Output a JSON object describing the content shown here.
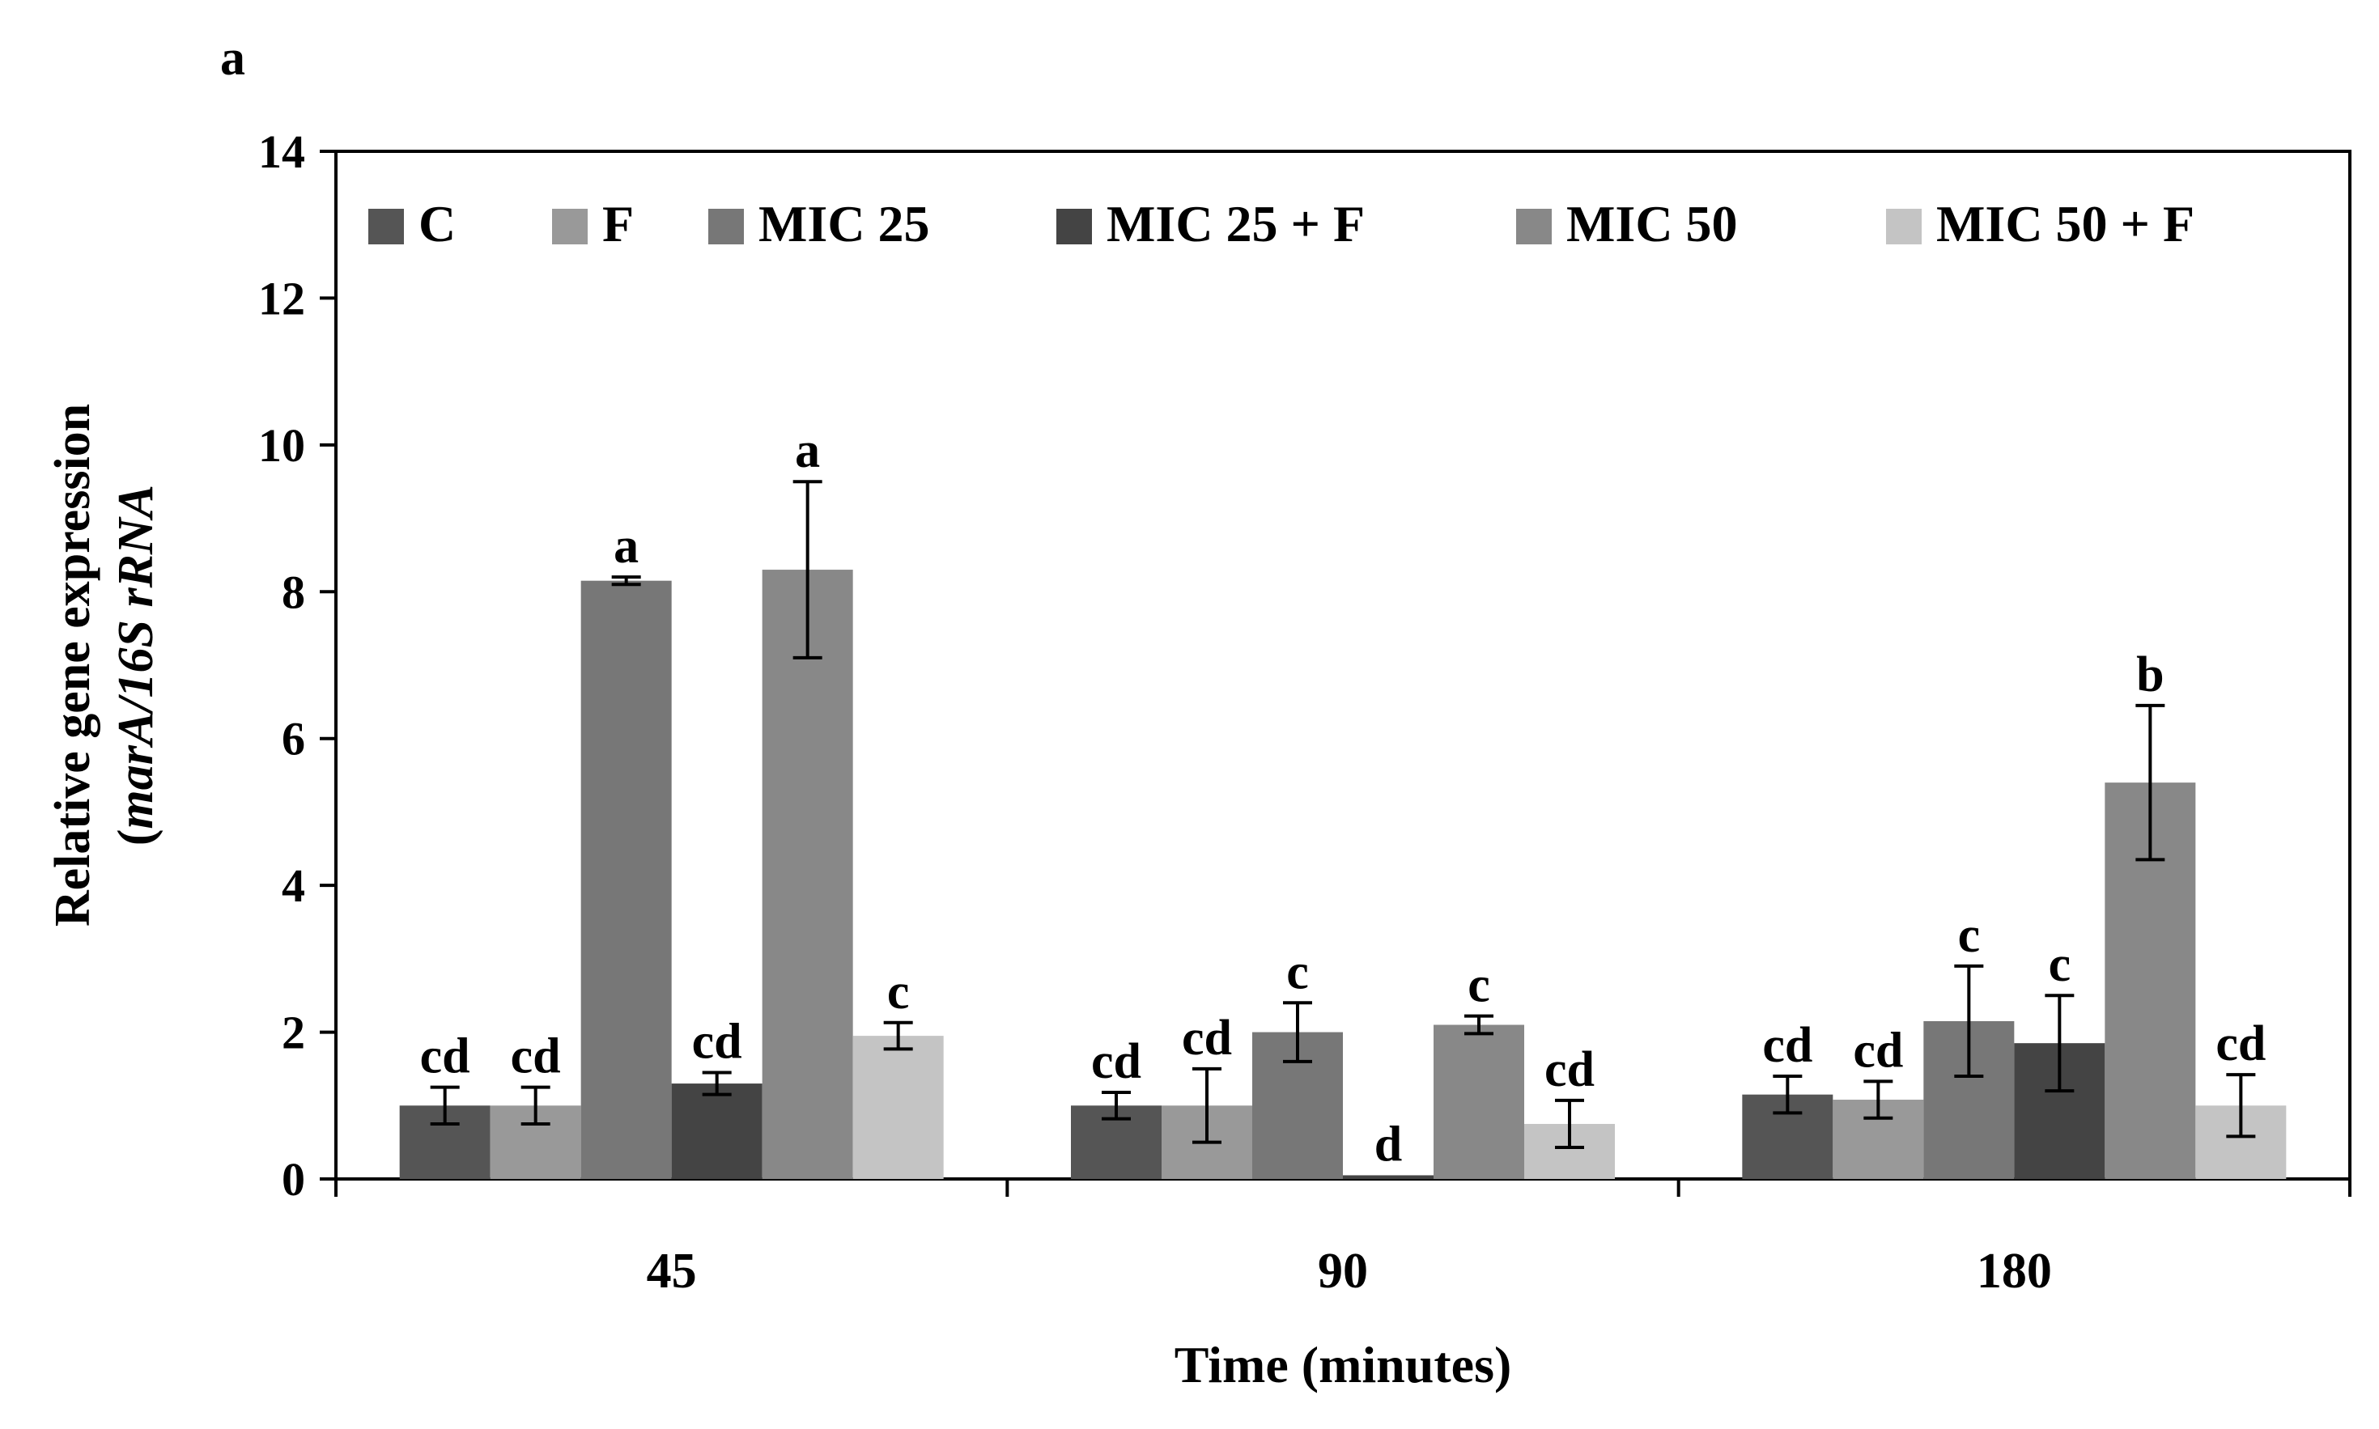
{
  "panel_label": "a",
  "chart_data": {
    "type": "bar",
    "title": "",
    "xlabel": "Time (minutes)",
    "ylabel_line1": "Relative gene expression",
    "ylabel_line2_prefix": "(",
    "ylabel_line2_italic": "marA/16S rRNA",
    "ylim": [
      0,
      14
    ],
    "yticks": [
      0,
      2,
      4,
      6,
      8,
      10,
      12,
      14
    ],
    "categories": [
      "45",
      "90",
      "180"
    ],
    "legend_position": "top",
    "series": [
      {
        "name": "C",
        "color": "#555555",
        "values": [
          1.0,
          1.0,
          1.15
        ],
        "errors": [
          0.25,
          0.18,
          0.25
        ],
        "letters": [
          "cd",
          "cd",
          "cd"
        ]
      },
      {
        "name": "F",
        "color": "#999999",
        "values": [
          1.0,
          1.0,
          1.08
        ],
        "errors": [
          0.25,
          0.5,
          0.25
        ],
        "letters": [
          "cd",
          "cd",
          "cd"
        ]
      },
      {
        "name": "MIC 25",
        "color": "#777777",
        "values": [
          8.15,
          2.0,
          2.15
        ],
        "errors": [
          0.05,
          0.4,
          0.75
        ],
        "letters": [
          "a",
          "c",
          "c"
        ]
      },
      {
        "name": "MIC 25 + F",
        "color": "#444444",
        "values": [
          1.3,
          0.05,
          1.85
        ],
        "errors": [
          0.15,
          0.0,
          0.65
        ],
        "letters": [
          "cd",
          "d",
          "c"
        ]
      },
      {
        "name": "MIC 50",
        "color": "#888888",
        "values": [
          8.3,
          2.1,
          5.4
        ],
        "errors": [
          1.2,
          0.12,
          1.05
        ],
        "letters": [
          "a",
          "c",
          "b"
        ]
      },
      {
        "name": "MIC 50 + F",
        "color": "#c4c4c4",
        "values": [
          1.95,
          0.75,
          1.0
        ],
        "errors": [
          0.18,
          0.32,
          0.42
        ],
        "letters": [
          "c",
          "cd",
          "cd"
        ]
      }
    ]
  }
}
